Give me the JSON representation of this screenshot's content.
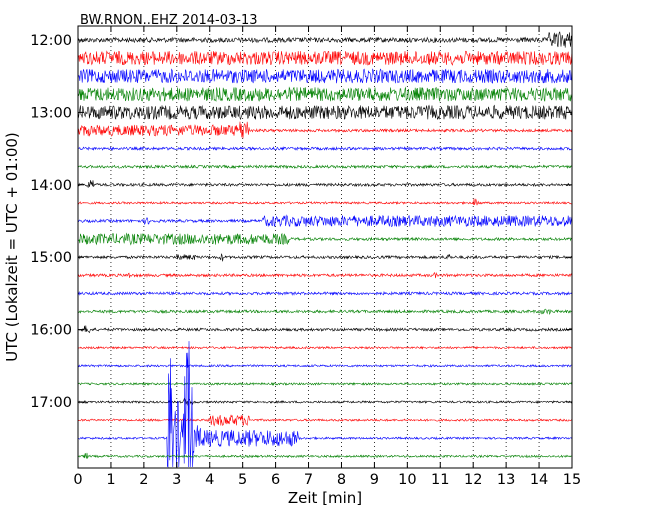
{
  "chart_data": {
    "type": "line",
    "title": "BW.RNON..EHZ 2014-03-13",
    "xlabel": "Zeit  [min]",
    "ylabel": "UTC (Lokalzeit = UTC + 01:00)",
    "xlim": [
      0,
      15
    ],
    "x_ticks": [
      "0",
      "1",
      "2",
      "3",
      "4",
      "5",
      "6",
      "7",
      "8",
      "9",
      "10",
      "11",
      "12",
      "13",
      "14",
      "15"
    ],
    "y_ticks": [
      "12:00",
      "13:00",
      "14:00",
      "15:00",
      "16:00",
      "17:00"
    ],
    "grid": "vertical dotted",
    "trace_colors": [
      "#000000",
      "#ff0000",
      "#0000ff",
      "#008000"
    ],
    "traces": [
      {
        "start": "12:00",
        "color": "#000000",
        "noise": 0.35,
        "events": [
          {
            "t": 14.3,
            "amp": 1.2,
            "dur": 0.7
          }
        ]
      },
      {
        "start": "12:15",
        "color": "#ff0000",
        "noise": 1.0,
        "events": []
      },
      {
        "start": "12:30",
        "color": "#0000ff",
        "noise": 1.0,
        "events": []
      },
      {
        "start": "12:45",
        "color": "#008000",
        "noise": 1.0,
        "events": []
      },
      {
        "start": "13:00",
        "color": "#000000",
        "noise": 1.0,
        "events": []
      },
      {
        "start": "13:15",
        "color": "#ff0000",
        "noise": 0.2,
        "events": [
          {
            "t": 0.0,
            "amp": 0.8,
            "dur": 5.0
          },
          {
            "t": 4.9,
            "amp": 1.5,
            "dur": 0.3
          }
        ]
      },
      {
        "start": "13:30",
        "color": "#0000ff",
        "noise": 0.2,
        "events": []
      },
      {
        "start": "13:45",
        "color": "#008000",
        "noise": 0.2,
        "events": []
      },
      {
        "start": "14:00",
        "color": "#000000",
        "noise": 0.2,
        "events": [
          {
            "t": 0.3,
            "amp": 0.8,
            "dur": 0.2
          }
        ]
      },
      {
        "start": "14:15",
        "color": "#ff0000",
        "noise": 0.15,
        "events": [
          {
            "t": 12.0,
            "amp": 0.6,
            "dur": 0.2
          }
        ]
      },
      {
        "start": "14:30",
        "color": "#0000ff",
        "noise": 0.2,
        "events": [
          {
            "t": 2.0,
            "amp": 0.5,
            "dur": 0.2
          },
          {
            "t": 5.6,
            "amp": 0.8,
            "dur": 9.4
          }
        ]
      },
      {
        "start": "14:45",
        "color": "#008000",
        "noise": 0.2,
        "events": [
          {
            "t": 0.0,
            "amp": 0.8,
            "dur": 6.4
          }
        ]
      },
      {
        "start": "15:00",
        "color": "#000000",
        "noise": 0.2,
        "events": [
          {
            "t": 3.0,
            "amp": 0.4,
            "dur": 0.6
          },
          {
            "t": 4.3,
            "amp": 0.6,
            "dur": 0.1
          },
          {
            "t": 11.2,
            "amp": 0.6,
            "dur": 0.1
          }
        ]
      },
      {
        "start": "15:15",
        "color": "#ff0000",
        "noise": 0.2,
        "events": [
          {
            "t": 1.5,
            "amp": 0.5,
            "dur": 0.1
          },
          {
            "t": 10.8,
            "amp": 0.4,
            "dur": 0.1
          }
        ]
      },
      {
        "start": "15:30",
        "color": "#0000ff",
        "noise": 0.2,
        "events": []
      },
      {
        "start": "15:45",
        "color": "#008000",
        "noise": 0.2,
        "events": [
          {
            "t": 14.0,
            "amp": 0.4,
            "dur": 0.4
          }
        ]
      },
      {
        "start": "16:00",
        "color": "#000000",
        "noise": 0.2,
        "events": [
          {
            "t": 0.2,
            "amp": 0.6,
            "dur": 0.2
          }
        ]
      },
      {
        "start": "16:15",
        "color": "#ff0000",
        "noise": 0.15,
        "events": []
      },
      {
        "start": "16:30",
        "color": "#0000ff",
        "noise": 0.15,
        "events": []
      },
      {
        "start": "16:45",
        "color": "#008000",
        "noise": 0.15,
        "events": []
      },
      {
        "start": "17:00",
        "color": "#000000",
        "noise": 0.15,
        "events": [
          {
            "t": 3.2,
            "amp": 0.5,
            "dur": 0.3
          }
        ]
      },
      {
        "start": "17:15",
        "color": "#ff0000",
        "noise": 0.15,
        "events": [
          {
            "t": 4.0,
            "amp": 0.8,
            "dur": 1.2
          }
        ]
      },
      {
        "start": "17:30",
        "color": "#0000ff",
        "noise": 0.15,
        "events": [
          {
            "t": 2.7,
            "amp": 1.2,
            "dur": 4.0
          }
        ]
      },
      {
        "start": "17:45",
        "color": "#008000",
        "noise": 0.15,
        "events": [
          {
            "t": 0.2,
            "amp": 0.5,
            "dur": 0.1
          }
        ]
      }
    ],
    "earthquake": {
      "trace": "17:30",
      "start": 2.7,
      "peaks": [
        2.8,
        3.3,
        3.4
      ],
      "duration": 1.2
    }
  }
}
